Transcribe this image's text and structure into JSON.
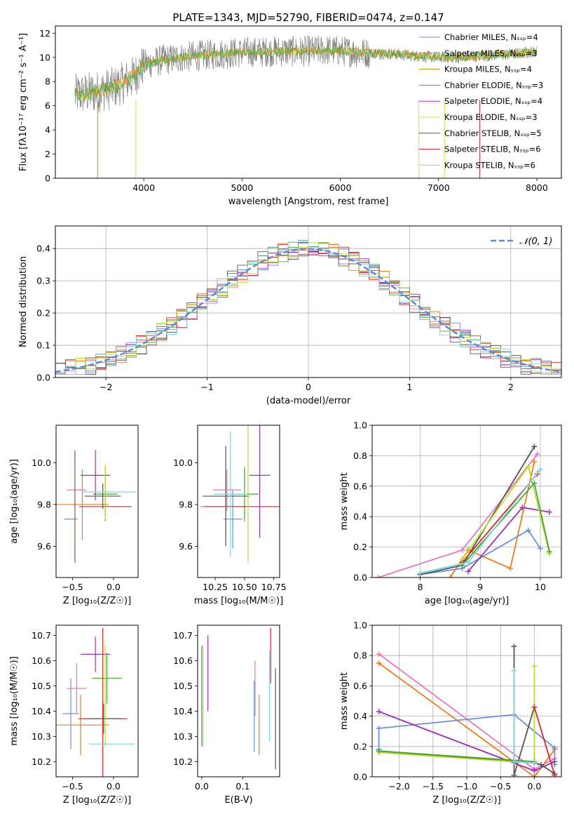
{
  "figure_title": "PLATE=1343, MJD=52790, FIBERID=0474, z=0.147",
  "colors": [
    "#6b8fd6",
    "#e87d1e",
    "#4aa43a",
    "#d62728",
    "#9b30b8",
    "#8c564b",
    "#e377c2",
    "#555555",
    "#bcdc2a",
    "#7fd6dc"
  ],
  "chart_data": [
    {
      "type": "line",
      "id": "spectrum",
      "xlabel": "wavelength [Angstrom, rest frame]",
      "ylabel": "Flux [fλ10⁻¹⁷ erg cm⁻² s⁻¹ A⁻¹]",
      "xlim": [
        3100,
        8250
      ],
      "ylim": [
        0,
        12.6
      ],
      "xticks": [
        4000,
        5000,
        6000,
        7000,
        8000
      ],
      "yticks": [
        0,
        2,
        4,
        6,
        8,
        10,
        12
      ],
      "grid": false,
      "legend": "right",
      "legend_entries": [
        {
          "name": "Chabrier MILES, Nₛₛₚ=4",
          "color": "#6b8fd6"
        },
        {
          "name": "Salpeter MILES, Nₛₛₚ=3",
          "color": "#e87d1e"
        },
        {
          "name": "Kroupa MILES, Nₛₛₚ=4",
          "color": "#b8860b"
        },
        {
          "name": "Chabrier ELODIE, Nₛₛₚ=3",
          "color": "#4aa43a"
        },
        {
          "name": "Salpeter ELODIE, Nₛₛₚ=4",
          "color": "#9b30b8"
        },
        {
          "name": "Kroupa ELODIE, Nₛₛₚ=3",
          "color": "#dddd40"
        },
        {
          "name": "Chabrier STELIB, Nₛₛₚ=5",
          "color": "#555555"
        },
        {
          "name": "Salpeter STELIB, Nₛₛₚ=6",
          "color": "#b22222"
        },
        {
          "name": "Kroupa STELIB, Nₛₛₚ=6",
          "color": "#7fd6dc"
        }
      ],
      "continuum": {
        "x": [
          3300,
          3500,
          3700,
          3900,
          4000,
          4200,
          4500,
          4800,
          5000,
          5300,
          5600,
          5900,
          6200,
          6500,
          6800,
          7000,
          7200,
          7400,
          7600,
          7800,
          8000
        ],
        "y": [
          6.9,
          7.1,
          7.5,
          8.4,
          9.4,
          9.8,
          10.1,
          10.3,
          10.4,
          10.5,
          10.5,
          10.6,
          10.4,
          10.3,
          10.1,
          10.0,
          10.0,
          10.1,
          10.2,
          10.3,
          10.5
        ]
      }
    },
    {
      "type": "line",
      "id": "residual-hist",
      "xlabel": "(data-model)/error",
      "ylabel": "Normed distribution",
      "xlim": [
        -2.5,
        2.5
      ],
      "ylim": [
        0,
        0.47
      ],
      "xticks": [
        -2,
        -1,
        0,
        1,
        2
      ],
      "yticks": [
        0.0,
        0.1,
        0.2,
        0.3,
        0.4
      ],
      "grid": true,
      "legend": "top-right",
      "gauss_label": "𝒩(0, 1)",
      "gauss_color": "#5b8ad6"
    },
    {
      "type": "scatter",
      "id": "age-vs-z",
      "xlabel": "Z [log₁₀(Z/Z☉)]",
      "ylabel": "age  [log₁₀(age/yr)]",
      "xlim": [
        -0.7,
        0.3
      ],
      "ylim": [
        9.45,
        10.18
      ],
      "xticks": [
        -0.5,
        0.0
      ],
      "yticks": [
        9.6,
        9.8,
        10.0
      ],
      "points": [
        {
          "x": -0.52,
          "y": 9.73,
          "xerr": 0.08,
          "yerr": 0.0,
          "c": 0
        },
        {
          "x": -0.38,
          "y": 9.8,
          "xerr": 0.32,
          "yerr": 0.17,
          "c": 1
        },
        {
          "x": -0.1,
          "y": 9.85,
          "xerr": 0.15,
          "yerr": 0.13,
          "c": 2
        },
        {
          "x": -0.1,
          "y": 9.79,
          "xerr": 0.32,
          "yerr": 0.0,
          "c": 3
        },
        {
          "x": -0.22,
          "y": 9.94,
          "xerr": 0.18,
          "yerr": 0.12,
          "c": 4
        },
        {
          "x": -0.45,
          "y": 9.87,
          "xerr": 0.12,
          "yerr": 0.0,
          "c": 6
        },
        {
          "x": -0.13,
          "y": 9.84,
          "xerr": 0.22,
          "yerr": 0.06,
          "c": 7
        },
        {
          "x": -0.1,
          "y": 9.86,
          "xerr": 0.0,
          "yerr": 0.13,
          "c": 8
        },
        {
          "x": -0.05,
          "y": 9.86,
          "xerr": 0.33,
          "yerr": 0.0,
          "c": 9
        },
        {
          "x": -0.47,
          "y": 9.79,
          "xerr": 0.0,
          "yerr": 0.27,
          "c": 5
        }
      ]
    },
    {
      "type": "scatter",
      "id": "age-vs-mass",
      "xlabel": "mass [log₁₀(M/M☉)]",
      "ylabel": "",
      "xlim": [
        10.1,
        10.8
      ],
      "ylim": [
        9.45,
        10.18
      ],
      "xticks": [
        10.25,
        10.5,
        10.75
      ],
      "yticks": [
        9.6,
        9.8,
        10.0
      ],
      "points": [
        {
          "x": 10.4,
          "y": 9.73,
          "xerr": 0.08,
          "yerr": 0.14,
          "c": 0
        },
        {
          "x": 10.34,
          "y": 9.79,
          "xerr": 0.22,
          "yerr": 0.16,
          "c": 1
        },
        {
          "x": 10.5,
          "y": 9.85,
          "xerr": 0.12,
          "yerr": 0.13,
          "c": 2
        },
        {
          "x": 10.48,
          "y": 9.79,
          "xerr": 0.32,
          "yerr": 0.0,
          "c": 3
        },
        {
          "x": 10.63,
          "y": 9.94,
          "xerr": 0.09,
          "yerr": 0.3,
          "c": 4
        },
        {
          "x": 10.34,
          "y": 9.84,
          "xerr": 0.2,
          "yerr": 0.24,
          "c": 7
        },
        {
          "x": 10.53,
          "y": 9.86,
          "xerr": 0.0,
          "yerr": 0.34,
          "c": 8
        },
        {
          "x": 10.38,
          "y": 9.85,
          "xerr": 0.14,
          "yerr": 0.3,
          "c": 9
        },
        {
          "x": 10.35,
          "y": 9.87,
          "xerr": 0.12,
          "yerr": 0.1,
          "c": 6
        }
      ]
    },
    {
      "type": "line",
      "id": "massweight-vs-age",
      "xlabel": "age  [log₁₀(age/yr)]",
      "ylabel": "mass weight",
      "xlim": [
        7.2,
        10.35
      ],
      "ylim": [
        0,
        1.0
      ],
      "xticks": [
        8,
        9,
        10
      ],
      "yticks": [
        0.0,
        0.2,
        0.4,
        0.6,
        0.8,
        1.0
      ],
      "grid": true,
      "series": [
        {
          "c": 6,
          "x": [
            7.3,
            8.7,
            9.95
          ],
          "y": [
            0.0,
            0.18,
            0.81
          ]
        },
        {
          "c": 1,
          "x": [
            8.5,
            8.8,
            9.5,
            9.9
          ],
          "y": [
            0.0,
            0.18,
            0.06,
            0.76
          ]
        },
        {
          "c": 0,
          "x": [
            8.0,
            8.7,
            9.8,
            10.0
          ],
          "y": [
            0.02,
            0.06,
            0.31,
            0.19
          ]
        },
        {
          "c": 4,
          "x": [
            8.8,
            9.7,
            10.15
          ],
          "y": [
            0.04,
            0.46,
            0.43
          ]
        },
        {
          "c": 7,
          "x": [
            8.0,
            8.7,
            9.9
          ],
          "y": [
            0.02,
            0.08,
            0.86
          ]
        },
        {
          "c": 3,
          "x": [
            8.7,
            9.95
          ],
          "y": [
            0.1,
            0.68
          ]
        },
        {
          "c": 8,
          "x": [
            8.7,
            9.8,
            10.15
          ],
          "y": [
            0.12,
            0.73,
            0.16
          ]
        },
        {
          "c": 2,
          "x": [
            8.7,
            9.9,
            10.15
          ],
          "y": [
            0.08,
            0.62,
            0.17
          ]
        },
        {
          "c": 9,
          "x": [
            8.0,
            8.8,
            10.0
          ],
          "y": [
            0.03,
            0.1,
            0.71
          ]
        }
      ]
    },
    {
      "type": "scatter",
      "id": "mass-vs-z",
      "xlabel": "Z [log₁₀(Z/Z☉)]",
      "ylabel": "mass [log₁₀(M/M☉)]",
      "xlim": [
        -0.7,
        0.3
      ],
      "ylim": [
        10.14,
        10.74
      ],
      "xticks": [
        -0.5,
        0.0
      ],
      "yticks": [
        10.2,
        10.3,
        10.4,
        10.5,
        10.6,
        10.7
      ],
      "points": [
        {
          "x": -0.52,
          "y": 10.39,
          "xerr": 0.1,
          "yerr": 0.14,
          "c": 0
        },
        {
          "x": -0.4,
          "y": 10.345,
          "xerr": 0.35,
          "yerr": 0.12,
          "c": 1
        },
        {
          "x": -0.08,
          "y": 10.53,
          "xerr": 0.18,
          "yerr": 0.1,
          "c": 2
        },
        {
          "x": -0.13,
          "y": 10.37,
          "xerr": 0.3,
          "yerr": 0.36,
          "c": 3
        },
        {
          "x": -0.22,
          "y": 10.625,
          "xerr": 0.18,
          "yerr": 0.07,
          "c": 4
        },
        {
          "x": -0.45,
          "y": 10.49,
          "xerr": 0.12,
          "yerr": 0.1,
          "c": 6
        },
        {
          "x": -0.12,
          "y": 10.37,
          "xerr": 0.22,
          "yerr": 0.06,
          "c": 7
        },
        {
          "x": -0.1,
          "y": 10.46,
          "xerr": 0.0,
          "yerr": 0.2,
          "c": 8
        },
        {
          "x": -0.02,
          "y": 10.27,
          "xerr": 0.28,
          "yerr": 0.0,
          "c": 9
        }
      ]
    },
    {
      "type": "scatter",
      "id": "mass-vs-ebv",
      "xlabel": "E(B-V)",
      "ylabel": "",
      "xlim": [
        -0.01,
        0.19
      ],
      "ylim": [
        10.14,
        10.74
      ],
      "xticks": [
        0.0,
        0.1
      ],
      "yticks": [
        10.2,
        10.3,
        10.4,
        10.5,
        10.6,
        10.7
      ],
      "points": [
        {
          "x": 0.128,
          "y": 10.38,
          "xerr": 0.0,
          "yerr": 0.14,
          "c": 0
        },
        {
          "x": 0.14,
          "y": 10.345,
          "xerr": 0.0,
          "yerr": 0.12,
          "c": 1
        },
        {
          "x": 0.0,
          "y": 10.46,
          "xerr": 0.0,
          "yerr": 0.2,
          "c": 2
        },
        {
          "x": 0.168,
          "y": 10.62,
          "xerr": 0.0,
          "yerr": 0.11,
          "c": 3
        },
        {
          "x": 0.015,
          "y": 10.55,
          "xerr": 0.0,
          "yerr": 0.15,
          "c": 4
        },
        {
          "x": 0.13,
          "y": 10.49,
          "xerr": 0.0,
          "yerr": 0.11,
          "c": 6
        },
        {
          "x": 0.18,
          "y": 10.37,
          "xerr": 0.0,
          "yerr": 0.2,
          "c": 7
        },
        {
          "x": 0.003,
          "y": 10.46,
          "xerr": 0.0,
          "yerr": 0.2,
          "c": 8
        },
        {
          "x": 0.165,
          "y": 10.46,
          "xerr": 0.0,
          "yerr": 0.18,
          "c": 9
        }
      ]
    },
    {
      "type": "line",
      "id": "massweight-vs-z",
      "xlabel": "Z [log₁₀(Z/Z☉)]",
      "ylabel": "mass weight",
      "xlim": [
        -2.4,
        0.4
      ],
      "ylim": [
        0,
        1.0
      ],
      "xticks": [
        -2.0,
        -1.5,
        -1.0,
        -0.5,
        0.0
      ],
      "yticks": [
        0.0,
        0.2,
        0.4,
        0.6,
        0.8,
        1.0
      ],
      "grid": true,
      "series": [
        {
          "c": 6,
          "x": [
            -2.3,
            0.0,
            0.3
          ],
          "y": [
            0.81,
            0.05,
            0.12
          ]
        },
        {
          "c": 1,
          "x": [
            -2.3,
            0.0,
            0.3
          ],
          "y": [
            0.75,
            0.0,
            0.18
          ]
        },
        {
          "c": 0,
          "x": [
            -2.3,
            -2.3,
            -0.3,
            0.3,
            0.3
          ],
          "y": [
            0.18,
            0.32,
            0.41,
            0.19,
            0.08
          ]
        },
        {
          "c": 4,
          "x": [
            -2.3,
            0.0,
            0.3
          ],
          "y": [
            0.43,
            0.04,
            0.1
          ]
        },
        {
          "c": 7,
          "x": [
            -2.3,
            0.0,
            0.1,
            0.3
          ],
          "y": [
            0.17,
            0.09,
            0.08,
            0.02
          ]
        },
        {
          "c": 7,
          "x": [
            -0.3,
            -0.3,
            0.0
          ],
          "y": [
            0.86,
            0.01,
            0.46
          ]
        },
        {
          "c": 8,
          "x": [
            -2.3,
            0.0,
            0.0
          ],
          "y": [
            0.16,
            0.09,
            0.73
          ]
        },
        {
          "c": 2,
          "x": [
            -2.3,
            0.0
          ],
          "y": [
            0.17,
            0.1
          ]
        },
        {
          "c": 9,
          "x": [
            -0.3,
            -0.3,
            0.0
          ],
          "y": [
            0.7,
            0.1,
            0.09
          ]
        },
        {
          "c": 3,
          "x": [
            0.0,
            0.3
          ],
          "y": [
            0.46,
            0.01
          ]
        }
      ]
    }
  ]
}
